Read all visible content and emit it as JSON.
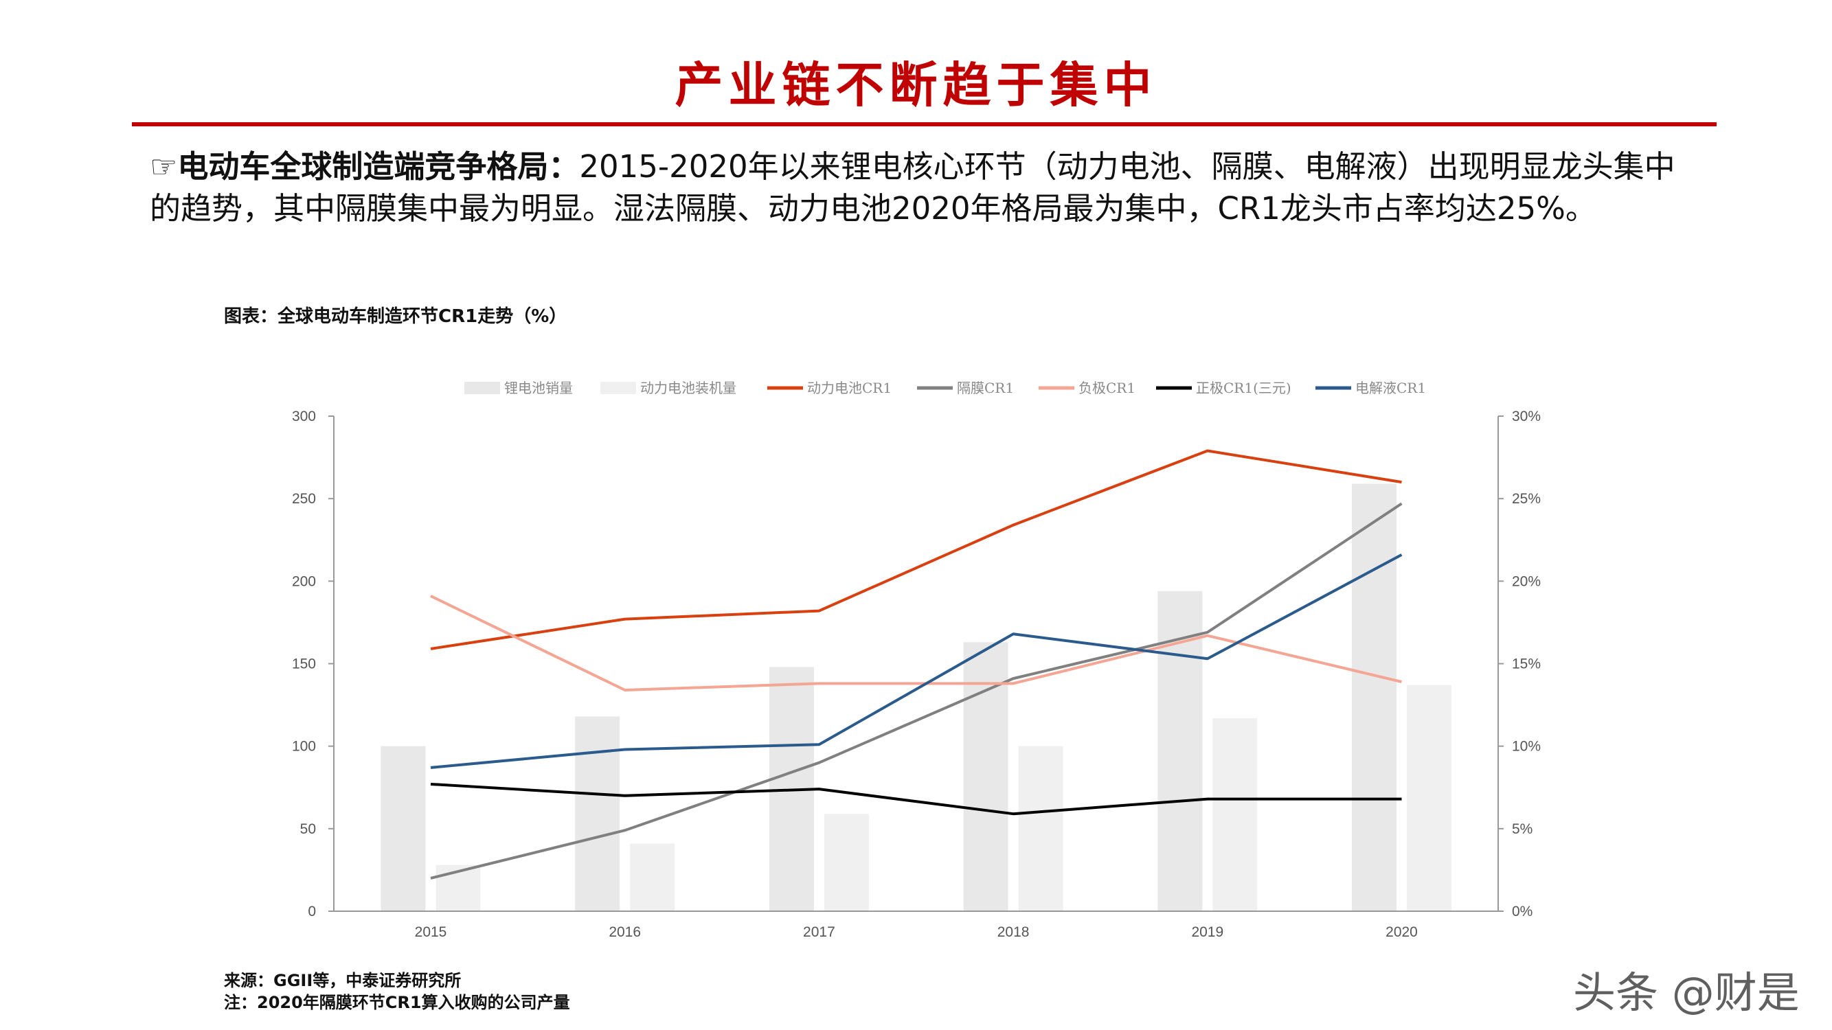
{
  "header": {
    "title": "产业链不断趋于集中"
  },
  "body": {
    "bullet_icon": "pointing-hand-icon",
    "lead": "电动车全球制造端竞争格局：",
    "text": "2015-2020年以来锂电核心环节（动力电池、隔膜、电解液）出现明显龙头集中的趋势，其中隔膜集中最为明显。湿法隔膜、动力电池2020年格局最为集中，CR1龙头市占率均达25%。"
  },
  "chart_caption": "图表：全球电动车制造环节CR1走势（%）",
  "footer": {
    "source": "来源：GGII等，中泰证券研究所",
    "note": "注：2020年隔膜环节CR1算入收购的公司产量"
  },
  "watermark": "头条 @财是",
  "chart_data": {
    "type": "bar+line",
    "categories": [
      "2015",
      "2016",
      "2017",
      "2018",
      "2019",
      "2020"
    ],
    "left_axis": {
      "ylim": [
        0,
        300
      ],
      "ticks": [
        "0",
        "50",
        "100",
        "150",
        "200",
        "250",
        "300"
      ]
    },
    "right_axis": {
      "ylim": [
        0,
        30
      ],
      "ticks": [
        "0%",
        "5%",
        "10%",
        "15%",
        "20%",
        "25%",
        "30%"
      ]
    },
    "legend_position": "top",
    "grid": false,
    "bars": [
      {
        "name": "锂电池销量",
        "color": "#e8e8e8",
        "values": [
          100,
          118,
          148,
          163,
          194,
          259
        ]
      },
      {
        "name": "动力电池装机量",
        "color": "#f0f0f0",
        "values": [
          28,
          41,
          59,
          100,
          117,
          137
        ]
      }
    ],
    "lines": [
      {
        "name": "动力电池CR1",
        "color": "#d9400f",
        "values": [
          15.9,
          17.7,
          18.2,
          23.4,
          27.9,
          26.0
        ]
      },
      {
        "name": "隔膜CR1",
        "color": "#808080",
        "values": [
          2.0,
          4.9,
          9.0,
          14.1,
          16.9,
          24.7
        ]
      },
      {
        "name": "负极CR1",
        "color": "#f4a593",
        "values": [
          19.1,
          13.4,
          13.8,
          13.8,
          16.7,
          13.9
        ]
      },
      {
        "name": "正极CR1(三元)",
        "color": "#000000",
        "values": [
          7.7,
          7.0,
          7.4,
          5.9,
          6.8,
          6.8
        ]
      },
      {
        "name": "电解液CR1",
        "color": "#2a5b8c",
        "values": [
          8.7,
          9.8,
          10.1,
          16.8,
          15.3,
          21.6
        ]
      }
    ]
  }
}
